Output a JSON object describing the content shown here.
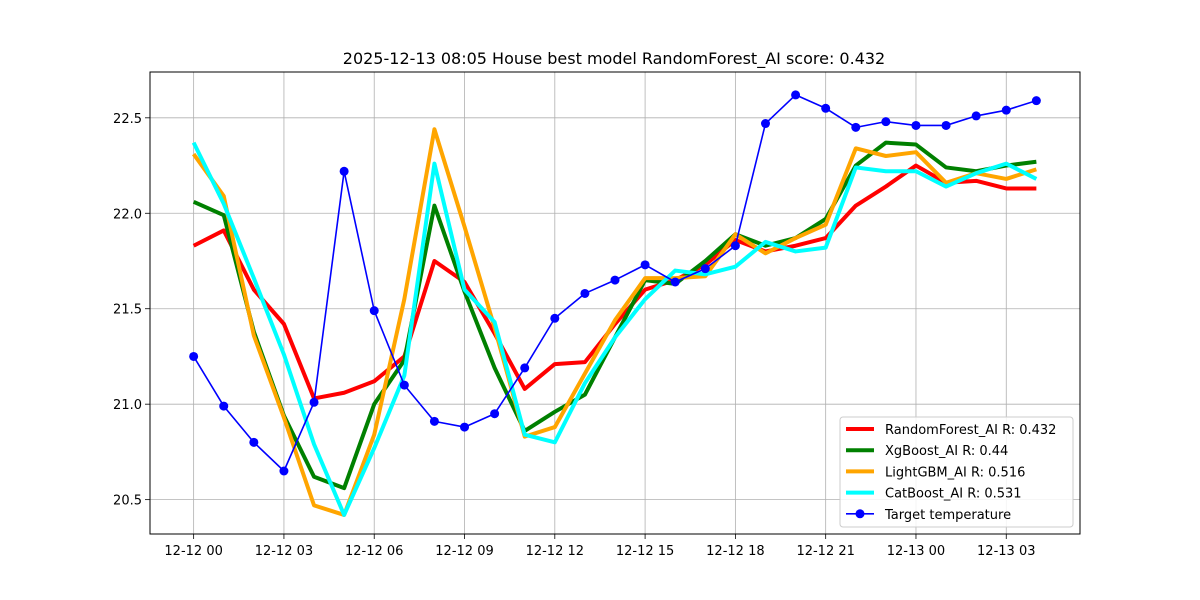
{
  "chart_data": {
    "type": "line",
    "title": "2025-12-13 08:05 House best model RandomForest_AI score: 0.432",
    "xlabel": "",
    "ylabel": "",
    "grid": true,
    "legend_position": "lower-right",
    "ylim": [
      20.32,
      22.74
    ],
    "xlim": [
      -1.45,
      29.45
    ],
    "x": [
      "12-12 00",
      "12-12 01",
      "12-12 02",
      "12-12 03",
      "12-12 04",
      "12-12 05",
      "12-12 06",
      "12-12 07",
      "12-12 08",
      "12-12 09",
      "12-12 10",
      "12-12 11",
      "12-12 12",
      "12-12 13",
      "12-12 14",
      "12-12 15",
      "12-12 16",
      "12-12 17",
      "12-12 18",
      "12-12 19",
      "12-12 20",
      "12-12 21",
      "12-12 22",
      "12-12 23",
      "12-13 00",
      "12-13 01",
      "12-13 02",
      "12-13 03",
      "12-13 04"
    ],
    "x_tick_labels": [
      "12-12 00",
      "12-12 03",
      "12-12 06",
      "12-12 09",
      "12-12 12",
      "12-12 15",
      "12-12 18",
      "12-12 21",
      "12-13 00",
      "12-13 03"
    ],
    "y_ticks": [
      20.5,
      21.0,
      21.5,
      22.0,
      22.5
    ],
    "y_tick_labels": [
      "20.5",
      "21.0",
      "21.5",
      "22.0",
      "22.5"
    ],
    "series": [
      {
        "name": "RandomForest_AI R: 0.432",
        "color": "#ff0000",
        "style": "line",
        "values": [
          21.83,
          21.91,
          21.6,
          21.42,
          21.03,
          21.06,
          21.12,
          21.25,
          21.75,
          21.64,
          21.37,
          21.08,
          21.21,
          21.22,
          21.42,
          21.6,
          21.65,
          21.73,
          21.86,
          21.8,
          21.83,
          21.87,
          22.04,
          22.14,
          22.25,
          22.16,
          22.17,
          22.13,
          22.13
        ]
      },
      {
        "name": "XgBoost_AI R: 0.44",
        "color": "#008000",
        "style": "line",
        "values": [
          22.06,
          21.99,
          21.38,
          20.94,
          20.62,
          20.56,
          21.0,
          21.23,
          22.04,
          21.59,
          21.19,
          20.86,
          20.96,
          21.05,
          21.35,
          21.65,
          21.63,
          21.75,
          21.89,
          21.83,
          21.87,
          21.97,
          22.25,
          22.37,
          22.36,
          22.24,
          22.22,
          22.25,
          22.27
        ]
      },
      {
        "name": "LightGBM_AI R: 0.516",
        "color": "#ffa500",
        "style": "line",
        "values": [
          22.31,
          22.09,
          21.36,
          20.93,
          20.47,
          20.42,
          20.84,
          21.55,
          22.44,
          21.93,
          21.4,
          20.83,
          20.88,
          21.16,
          21.44,
          21.66,
          21.66,
          21.67,
          21.89,
          21.79,
          21.87,
          21.94,
          22.34,
          22.3,
          22.32,
          22.16,
          22.21,
          22.18,
          22.23
        ]
      },
      {
        "name": "CatBoost_AI R: 0.531",
        "color": "#00ffff",
        "style": "line",
        "values": [
          22.37,
          22.05,
          21.66,
          21.26,
          20.79,
          20.42,
          20.77,
          21.15,
          22.26,
          21.6,
          21.43,
          20.84,
          20.8,
          21.11,
          21.35,
          21.55,
          21.7,
          21.68,
          21.72,
          21.85,
          21.8,
          21.82,
          22.24,
          22.22,
          22.22,
          22.14,
          22.21,
          22.26,
          22.18
        ]
      },
      {
        "name": "Target temperature",
        "color": "#0000ff",
        "style": "line-marker",
        "values": [
          21.25,
          20.99,
          20.8,
          20.65,
          21.01,
          22.22,
          21.49,
          21.1,
          20.91,
          20.88,
          20.95,
          21.19,
          21.45,
          21.58,
          21.65,
          21.73,
          21.64,
          21.71,
          21.83,
          22.47,
          22.62,
          22.55,
          22.45,
          22.48,
          22.46,
          22.46,
          22.51,
          22.54,
          22.59
        ]
      }
    ]
  }
}
